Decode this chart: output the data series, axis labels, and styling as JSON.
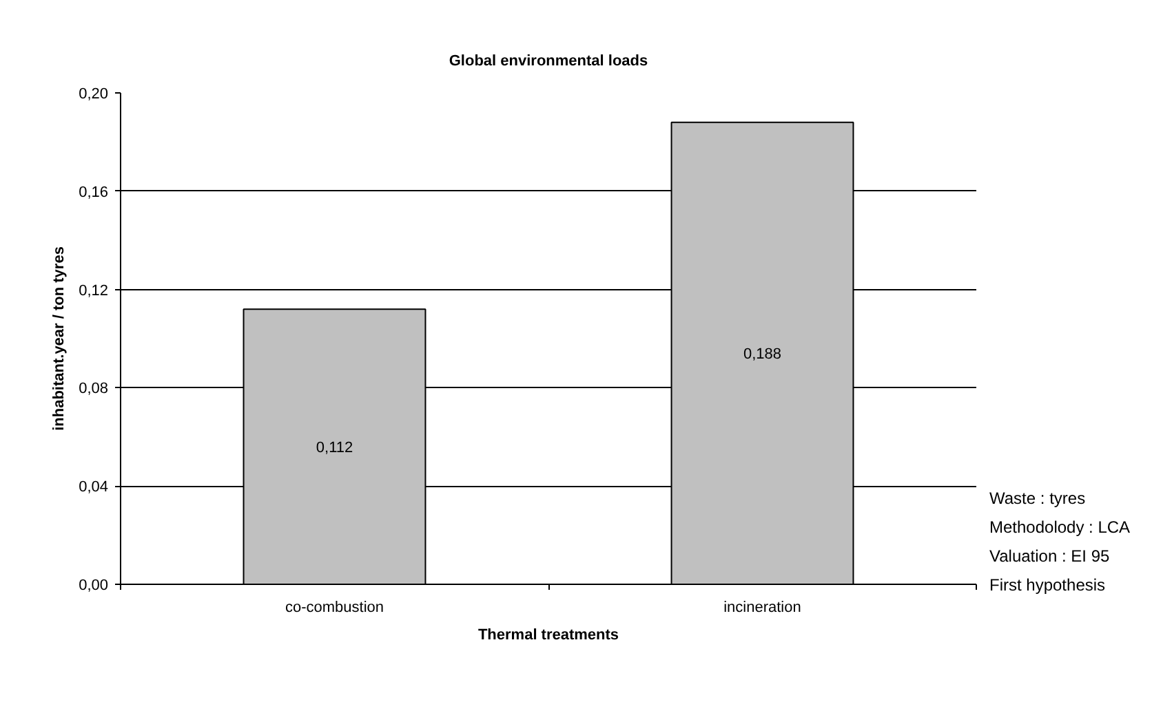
{
  "chart_data": {
    "type": "bar",
    "title": "Global environmental loads",
    "xlabel": "Thermal treatments",
    "ylabel": "inhabitant.year / ton tyres",
    "categories": [
      "co-combustion",
      "incineration"
    ],
    "values": [
      0.112,
      0.188
    ],
    "value_labels": [
      "0,112",
      "0,188"
    ],
    "color": "#c0c0c0",
    "ylim": [
      0,
      0.2
    ],
    "yticks": [
      {
        "value": 0,
        "label": "0,00"
      },
      {
        "value": 0.04,
        "label": "0,04"
      },
      {
        "value": 0.08,
        "label": "0,08"
      },
      {
        "value": 0.12,
        "label": "0,12"
      },
      {
        "value": 0.16,
        "label": "0,16"
      },
      {
        "value": 0.2,
        "label": "0,20"
      }
    ],
    "grid": "y",
    "annotations": [
      "Waste : tyres",
      "Methodolody : LCA",
      "Valuation : EI 95",
      "First hypothesis"
    ]
  }
}
